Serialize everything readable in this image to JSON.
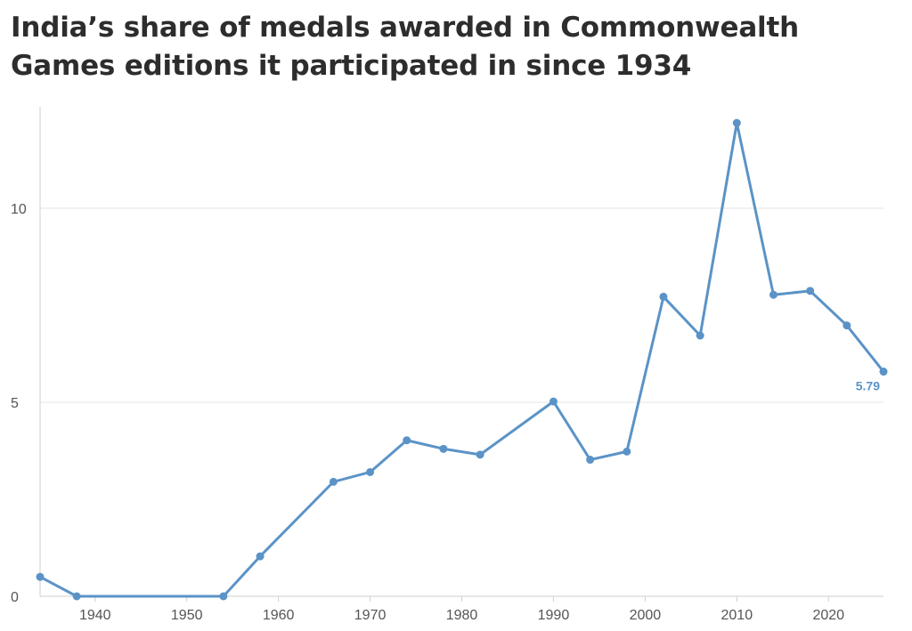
{
  "colors": {
    "series": "#5b93c7",
    "grid": "#e6e6e6",
    "axis": "#cfcfcf",
    "title": "#2d2d2d",
    "tick_text": "#555555"
  },
  "chart_data": {
    "type": "line",
    "title": "India’s share of medals awarded in Commonwealth Games editions it participated in since 1934",
    "xlabel": "",
    "ylabel": "",
    "xlim": [
      1934,
      2026
    ],
    "ylim": [
      0,
      12.5
    ],
    "xticks": [
      1940,
      1950,
      1960,
      1970,
      1980,
      1990,
      2000,
      2010,
      2020
    ],
    "yticks": [
      0,
      5,
      10
    ],
    "grid": "horizontal",
    "legend": "none",
    "series": [
      {
        "x": [
          1934,
          1938,
          1954,
          1958,
          1966,
          1970,
          1974,
          1978,
          1982,
          1990,
          1994,
          1998,
          2002,
          2006,
          2010,
          2014,
          2018,
          2022,
          2026
        ],
        "y": [
          0.5,
          0,
          0,
          1.03,
          2.95,
          3.2,
          4.02,
          3.8,
          3.65,
          5.02,
          3.52,
          3.73,
          7.72,
          6.72,
          12.2,
          7.77,
          7.87,
          6.98,
          5.79
        ],
        "end_label": "5.79"
      }
    ]
  }
}
